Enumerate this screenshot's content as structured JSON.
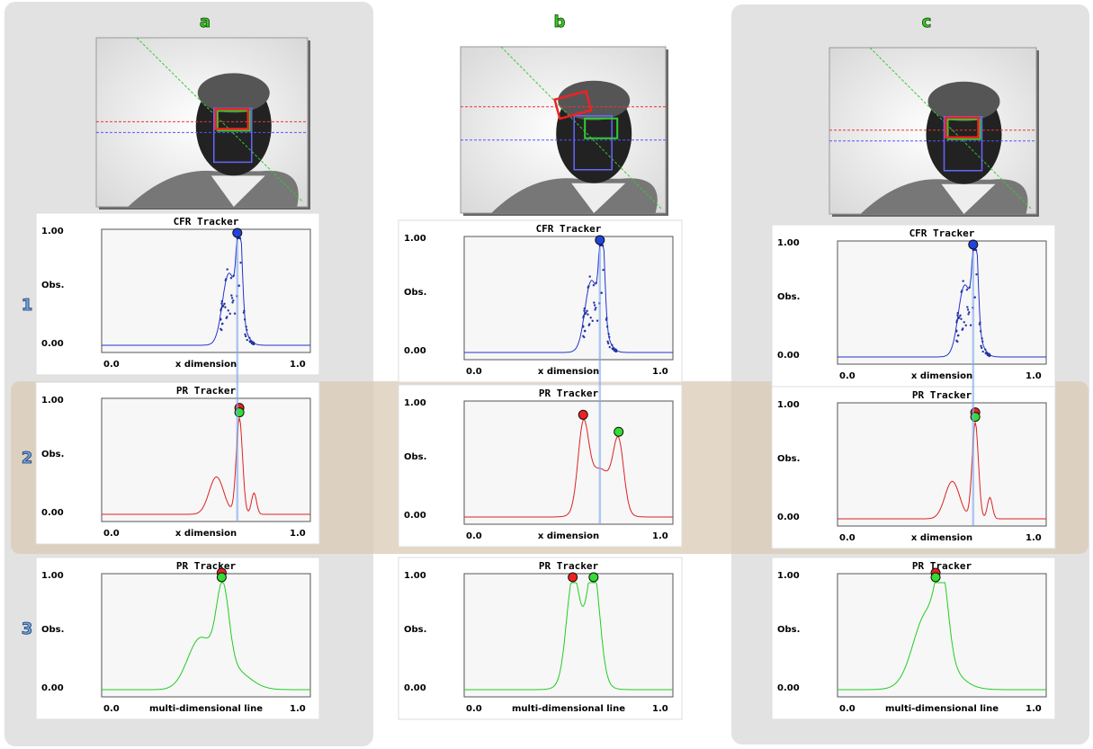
{
  "rows": [
    "1",
    "2",
    "3"
  ],
  "columns": [
    {
      "label": "a",
      "panels": [
        {
          "title": "CFR Tracker",
          "y_max": "1.00",
          "y_name": "Obs.",
          "y_min": "0.00",
          "x_min": "0.0",
          "x_name": "x dimension",
          "x_max": "1.0"
        },
        {
          "title": "PR Tracker",
          "y_max": "1.00",
          "y_name": "Obs.",
          "y_min": "0.00",
          "x_min": "0.0",
          "x_name": "x dimension",
          "x_max": "1.0"
        },
        {
          "title": "PR Tracker",
          "y_max": "1.00",
          "y_name": "Obs.",
          "y_min": "0.00",
          "x_min": "0.0",
          "x_name": "multi-dimensional line",
          "x_max": "1.0"
        }
      ]
    },
    {
      "label": "b",
      "panels": [
        {
          "title": "CFR Tracker",
          "y_max": "1.00",
          "y_name": "Obs.",
          "y_min": "0.00",
          "x_min": "0.0",
          "x_name": "x dimension",
          "x_max": "1.0"
        },
        {
          "title": "PR Tracker",
          "y_max": "1.00",
          "y_name": "Obs.",
          "y_min": "0.00",
          "x_min": "0.0",
          "x_name": "x dimension",
          "x_max": "1.0"
        },
        {
          "title": "PR Tracker",
          "y_max": "1.00",
          "y_name": "Obs.",
          "y_min": "0.00",
          "x_min": "0.0",
          "x_name": "multi-dimensional line",
          "x_max": "1.0"
        }
      ]
    },
    {
      "label": "c",
      "panels": [
        {
          "title": "CFR Tracker",
          "y_max": "1.00",
          "y_name": "Obs.",
          "y_min": "0.00",
          "x_min": "0.0",
          "x_name": "x dimension",
          "x_max": "1.0"
        },
        {
          "title": "PR Tracker",
          "y_max": "1.00",
          "y_name": "Obs.",
          "y_min": "0.00",
          "x_min": "0.0",
          "x_name": "x dimension",
          "x_max": "1.0"
        },
        {
          "title": "PR Tracker",
          "y_max": "1.00",
          "y_name": "Obs.",
          "y_min": "0.00",
          "x_min": "0.0",
          "x_name": "multi-dimensional line",
          "x_max": "1.0"
        }
      ]
    }
  ]
}
